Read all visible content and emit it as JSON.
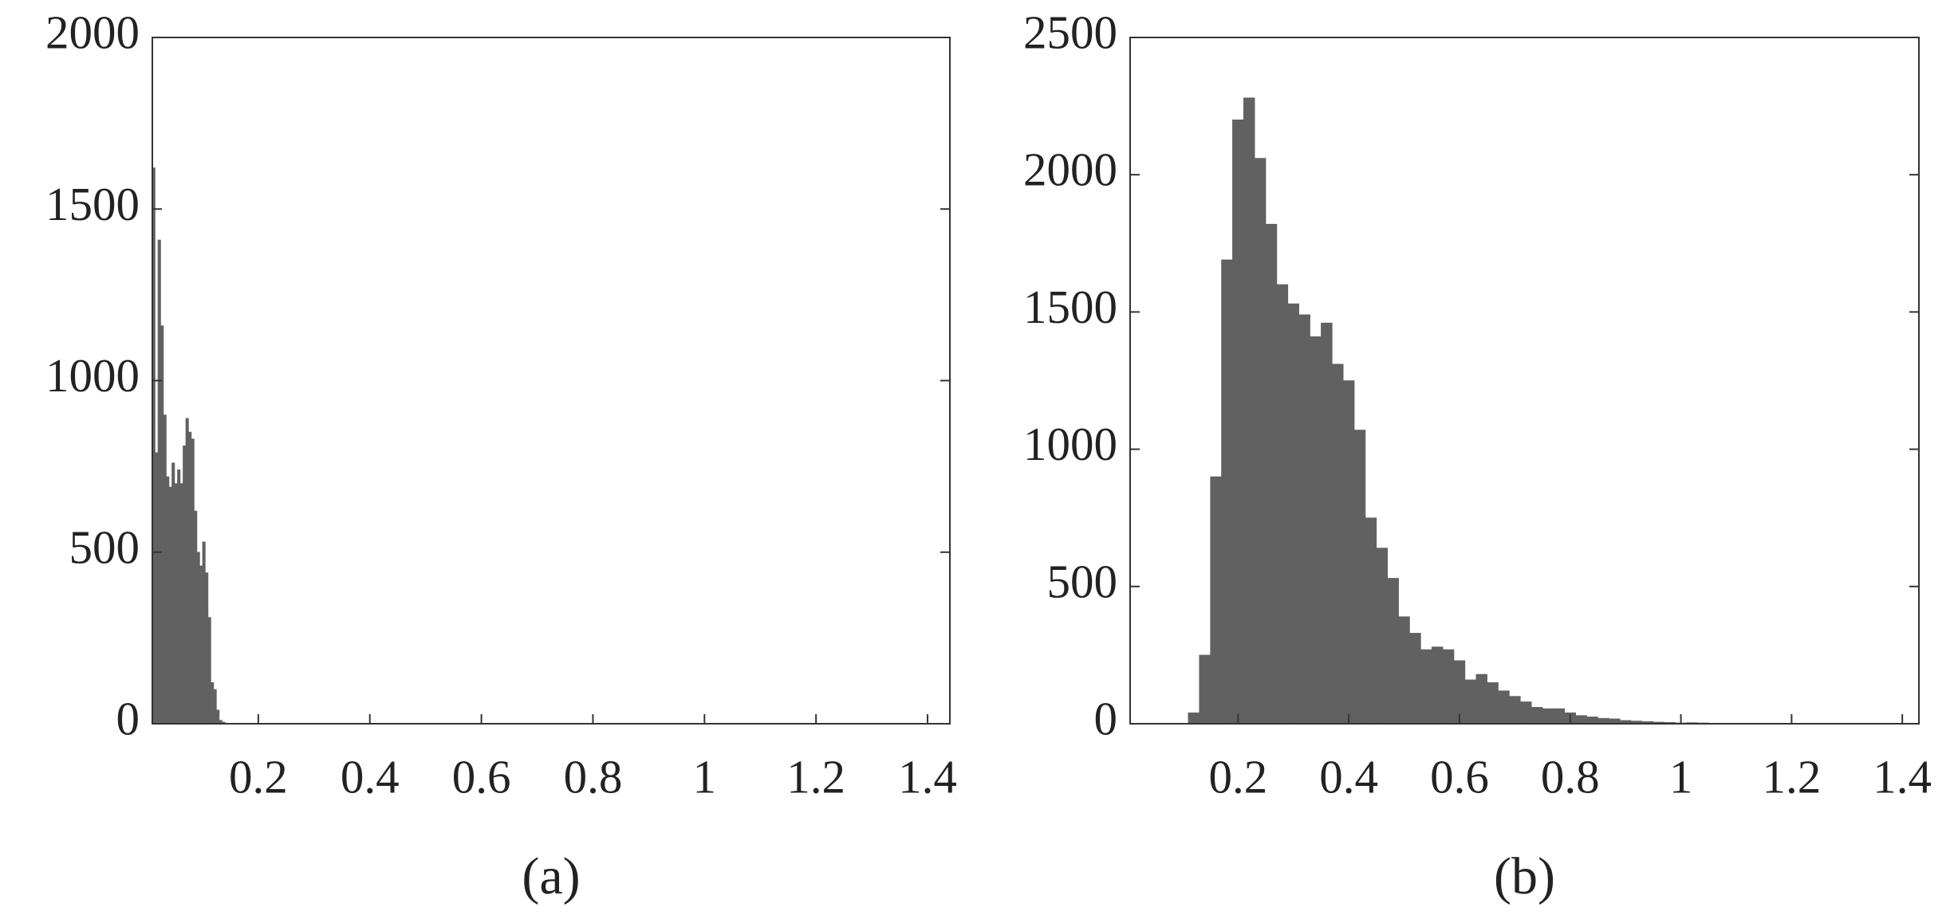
{
  "chart_data": [
    {
      "type": "histogram",
      "title": "(a)",
      "color": "#616161",
      "bins": [
        0.01,
        0.015,
        0.02,
        0.025,
        0.03,
        0.035,
        0.04,
        0.045,
        0.05,
        0.055,
        0.06,
        0.065,
        0.07,
        0.075,
        0.08,
        0.085,
        0.09,
        0.095,
        0.1,
        0.105,
        0.11,
        0.115,
        0.12,
        0.125,
        0.13,
        0.135,
        0.14,
        0.145
      ],
      "values": [
        1620,
        790,
        1410,
        1160,
        900,
        720,
        690,
        760,
        700,
        740,
        700,
        810,
        890,
        850,
        830,
        620,
        500,
        460,
        530,
        440,
        310,
        120,
        100,
        40,
        10,
        5,
        2
      ],
      "xlim": [
        0.01,
        1.44
      ],
      "xticks": [
        0.2,
        0.4,
        0.6,
        0.8,
        1,
        1.2,
        1.4
      ],
      "ylim": [
        0,
        2000
      ],
      "yticks": [
        0,
        500,
        1000,
        1500,
        2000
      ]
    },
    {
      "type": "histogram",
      "title": "(b)",
      "color": "#616161",
      "bins": [
        0.11,
        0.13,
        0.15,
        0.17,
        0.19,
        0.21,
        0.23,
        0.25,
        0.27,
        0.29,
        0.31,
        0.33,
        0.35,
        0.37,
        0.39,
        0.41,
        0.43,
        0.45,
        0.47,
        0.49,
        0.51,
        0.53,
        0.55,
        0.57,
        0.59,
        0.61,
        0.63,
        0.65,
        0.67,
        0.69,
        0.71,
        0.73,
        0.75,
        0.77,
        0.79,
        0.81,
        0.83,
        0.85,
        0.87,
        0.89,
        0.91,
        0.93,
        0.95,
        0.97,
        0.99,
        1.01,
        1.03,
        1.05,
        1.07,
        1.09,
        1.11,
        1.13,
        1.15
      ],
      "values": [
        40,
        250,
        900,
        1690,
        2200,
        2280,
        2060,
        1820,
        1600,
        1530,
        1490,
        1410,
        1460,
        1310,
        1250,
        1070,
        750,
        640,
        530,
        390,
        330,
        270,
        280,
        270,
        230,
        160,
        180,
        150,
        120,
        100,
        80,
        60,
        55,
        55,
        40,
        30,
        25,
        20,
        18,
        12,
        10,
        8,
        6,
        5,
        3,
        4,
        3,
        2,
        2,
        1,
        1,
        1
      ],
      "xlim": [
        0.005,
        1.43
      ],
      "xticks": [
        0.2,
        0.4,
        0.6,
        0.8,
        1,
        1.2,
        1.4
      ],
      "ylim": [
        0,
        2500
      ],
      "yticks": [
        0,
        500,
        1000,
        1500,
        2000,
        2500
      ]
    }
  ]
}
